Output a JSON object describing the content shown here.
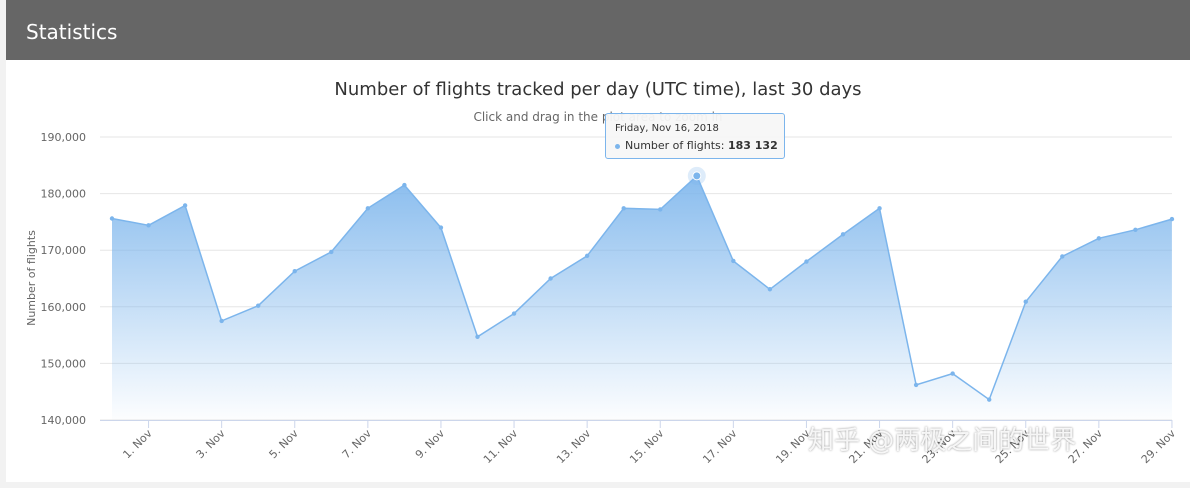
{
  "header": {
    "title": "Statistics"
  },
  "chart_data": {
    "type": "area",
    "title": "Number of flights tracked per day (UTC time), last 30 days",
    "subtitle": "Click and drag in the plot area to zoom in",
    "ylabel": "Number of flights",
    "xlabel": "",
    "ylim": [
      140000,
      190000
    ],
    "yticks": [
      140000,
      150000,
      160000,
      170000,
      180000,
      190000
    ],
    "ytick_labels": [
      "140,000",
      "150,000",
      "160,000",
      "170,000",
      "180,000",
      "190,000"
    ],
    "x_tick_labels": [
      "1. Nov",
      "3. Nov",
      "5. Nov",
      "7. Nov",
      "9. Nov",
      "11. Nov",
      "13. Nov",
      "15. Nov",
      "17. Nov",
      "19. Nov",
      "21. Nov",
      "23. Nov",
      "25. Nov",
      "27. Nov",
      "29. Nov"
    ],
    "x_tick_days": [
      1,
      3,
      5,
      7,
      9,
      11,
      13,
      15,
      17,
      19,
      21,
      23,
      25,
      27,
      29
    ],
    "grid": true,
    "legend": "none",
    "color": "#7cb5ec",
    "series": [
      {
        "name": "Number of flights",
        "x": [
          0,
          1,
          2,
          3,
          4,
          5,
          6,
          7,
          8,
          9,
          10,
          11,
          12,
          13,
          14,
          15,
          16,
          17,
          18,
          19,
          20,
          21,
          22,
          23,
          24,
          25,
          26,
          27,
          28,
          29
        ],
        "values": [
          175600,
          174400,
          177900,
          157500,
          160200,
          166300,
          169700,
          177400,
          181500,
          174000,
          154700,
          158800,
          165000,
          169000,
          177400,
          177200,
          183132,
          168100,
          163100,
          168000,
          172800,
          177400,
          146200,
          148200,
          143600,
          160900,
          168900,
          172100,
          173600,
          175500
        ]
      }
    ],
    "tooltip": {
      "date": "Friday, Nov 16, 2018",
      "label": "Number of flights:",
      "value": "183 132",
      "highlight_day": 16
    }
  },
  "watermark": "知乎 @两极之间的世界"
}
